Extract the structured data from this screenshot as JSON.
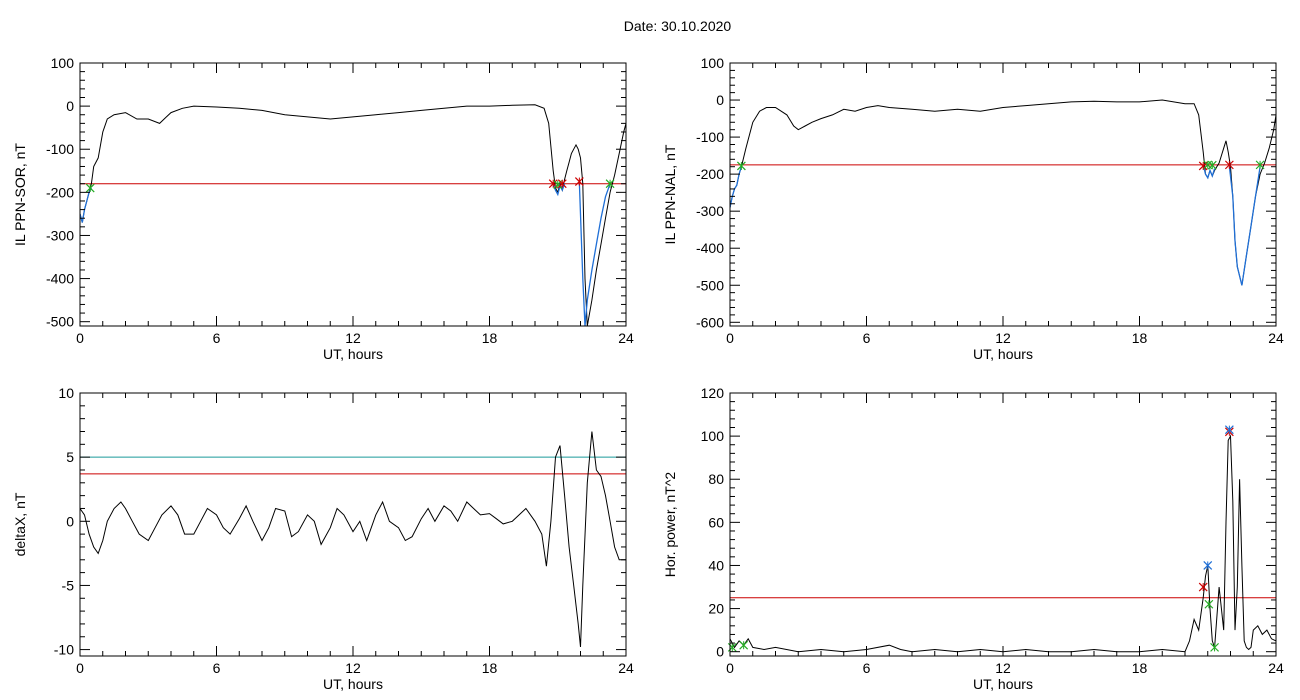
{
  "page": {
    "title": "Date:  30.10.2020"
  },
  "chart_data": [
    {
      "type": "line",
      "id": "panel-sor",
      "ylabel": "IL PPN-SOR, nT",
      "xlabel": "UT, hours",
      "xlim": [
        0,
        24
      ],
      "ylim": [
        -510,
        100
      ],
      "xticks": [
        0,
        6,
        12,
        18,
        24
      ],
      "yticks": [
        -500,
        -400,
        -300,
        -200,
        -100,
        0,
        100
      ],
      "series": [
        {
          "color": "#000000",
          "x": [
            0.0,
            0.1,
            0.2,
            0.3,
            0.4,
            0.5,
            0.6,
            0.8,
            1.0,
            1.2,
            1.5,
            2.0,
            2.5,
            3.0,
            3.5,
            3.8,
            4.0,
            4.5,
            5.0,
            6.0,
            7.0,
            8.0,
            9.0,
            10.0,
            11.0,
            12.0,
            13.0,
            14.0,
            15.0,
            16.0,
            17.0,
            18.0,
            19.0,
            20.0,
            20.4,
            20.6,
            20.8,
            20.9,
            21.0,
            21.1,
            21.2,
            21.3,
            21.4,
            21.5,
            21.6,
            21.7,
            21.8,
            21.9,
            22.0,
            22.1,
            22.2,
            22.3,
            22.5,
            22.7,
            22.9,
            23.1,
            23.3,
            23.5,
            23.7,
            23.9,
            24.0
          ],
          "y": [
            -250,
            -270,
            -240,
            -220,
            -200,
            -180,
            -140,
            -120,
            -60,
            -30,
            -20,
            -15,
            -30,
            -30,
            -40,
            -25,
            -15,
            -5,
            0,
            -2,
            -5,
            -10,
            -20,
            -25,
            -30,
            -25,
            -20,
            -15,
            -10,
            -5,
            0,
            0,
            2,
            3,
            -5,
            -40,
            -150,
            -190,
            -200,
            -180,
            -195,
            -170,
            -150,
            -130,
            -110,
            -100,
            -90,
            -100,
            -120,
            -180,
            -400,
            -510,
            -450,
            -380,
            -320,
            -260,
            -200,
            -160,
            -110,
            -60,
            -40
          ]
        }
      ],
      "segments": [
        {
          "color": "#1f6fd6",
          "x": [
            0.0,
            0.1,
            0.2,
            0.3,
            0.4,
            0.5
          ],
          "y": [
            -250,
            -270,
            -240,
            -220,
            -200,
            -190
          ]
        },
        {
          "color": "#1f6fd6",
          "x": [
            20.8,
            20.9,
            21.0,
            21.1,
            21.2,
            21.3
          ],
          "y": [
            -180,
            -195,
            -205,
            -185,
            -195,
            -180
          ]
        },
        {
          "color": "#1f6fd6",
          "x": [
            21.95,
            22.1,
            22.2,
            22.3,
            22.5,
            22.7,
            22.9,
            23.1,
            23.3
          ],
          "y": [
            -180,
            -400,
            -510,
            -450,
            -380,
            -320,
            -260,
            -210,
            -180
          ]
        }
      ],
      "threshold_lines": [
        {
          "y": -180,
          "color": "#cc0000"
        }
      ],
      "markers": [
        {
          "x": 0.45,
          "y": -190,
          "color": "#22aa22"
        },
        {
          "x": 20.8,
          "y": -180,
          "color": "#cc0000"
        },
        {
          "x": 21.0,
          "y": -182,
          "color": "#22aa22"
        },
        {
          "x": 21.2,
          "y": -180,
          "color": "#cc0000"
        },
        {
          "x": 21.95,
          "y": -175,
          "color": "#cc0000"
        },
        {
          "x": 23.3,
          "y": -180,
          "color": "#22aa22"
        }
      ]
    },
    {
      "type": "line",
      "id": "panel-nal",
      "ylabel": "IL PPN-NAL, nT",
      "xlabel": "UT, hours",
      "xlim": [
        0,
        24
      ],
      "ylim": [
        -610,
        100
      ],
      "xticks": [
        0,
        6,
        12,
        18,
        24
      ],
      "yticks": [
        -600,
        -500,
        -400,
        -300,
        -200,
        -100,
        0,
        100
      ],
      "series": [
        {
          "color": "#000000",
          "x": [
            0.0,
            0.1,
            0.2,
            0.3,
            0.4,
            0.5,
            0.7,
            1.0,
            1.3,
            1.6,
            2.0,
            2.5,
            2.8,
            3.0,
            3.3,
            3.6,
            4.0,
            4.5,
            5.0,
            5.5,
            6.0,
            6.5,
            7.0,
            8.0,
            9.0,
            10.0,
            11.0,
            12.0,
            13.0,
            14.0,
            15.0,
            16.0,
            17.0,
            18.0,
            19.0,
            20.0,
            20.4,
            20.6,
            20.8,
            20.9,
            21.0,
            21.1,
            21.2,
            21.3,
            21.4,
            21.5,
            21.6,
            21.7,
            21.8,
            21.9,
            22.0,
            22.1,
            22.2,
            22.3,
            22.5,
            22.7,
            22.9,
            23.1,
            23.3,
            23.5,
            23.7,
            23.9,
            24.0
          ],
          "y": [
            -290,
            -260,
            -240,
            -230,
            -200,
            -180,
            -130,
            -60,
            -30,
            -20,
            -20,
            -40,
            -70,
            -80,
            -70,
            -60,
            -50,
            -40,
            -25,
            -30,
            -20,
            -15,
            -20,
            -25,
            -30,
            -25,
            -30,
            -20,
            -15,
            -10,
            -5,
            -3,
            -5,
            -5,
            0,
            -10,
            -10,
            -40,
            -140,
            -200,
            -210,
            -190,
            -205,
            -190,
            -180,
            -170,
            -150,
            -130,
            -110,
            -140,
            -180,
            -260,
            -380,
            -450,
            -500,
            -420,
            -340,
            -260,
            -200,
            -170,
            -130,
            -80,
            -40
          ]
        }
      ],
      "segments": [
        {
          "color": "#1f6fd6",
          "x": [
            0.0,
            0.1,
            0.2,
            0.3,
            0.4,
            0.5
          ],
          "y": [
            -290,
            -260,
            -240,
            -230,
            -200,
            -180
          ]
        },
        {
          "color": "#1f6fd6",
          "x": [
            20.8,
            20.9,
            21.0,
            21.1,
            21.2,
            21.3
          ],
          "y": [
            -175,
            -200,
            -210,
            -190,
            -205,
            -185
          ]
        },
        {
          "color": "#1f6fd6",
          "x": [
            21.95,
            22.1,
            22.2,
            22.3,
            22.5,
            22.7,
            22.9,
            23.1,
            23.3
          ],
          "y": [
            -180,
            -260,
            -380,
            -450,
            -500,
            -420,
            -340,
            -260,
            -180
          ]
        }
      ],
      "threshold_lines": [
        {
          "y": -175,
          "color": "#cc0000"
        }
      ],
      "markers": [
        {
          "x": 0.5,
          "y": -178,
          "color": "#22aa22"
        },
        {
          "x": 20.8,
          "y": -178,
          "color": "#cc0000"
        },
        {
          "x": 21.0,
          "y": -175,
          "color": "#22aa22"
        },
        {
          "x": 21.2,
          "y": -176,
          "color": "#22aa22"
        },
        {
          "x": 21.95,
          "y": -175,
          "color": "#cc0000"
        },
        {
          "x": 23.3,
          "y": -175,
          "color": "#22aa22"
        }
      ]
    },
    {
      "type": "line",
      "id": "panel-deltax",
      "ylabel": "deltaX, nT",
      "xlabel": "UT, hours",
      "xlim": [
        0,
        24
      ],
      "ylim": [
        -10.5,
        10
      ],
      "xticks": [
        0,
        6,
        12,
        18,
        24
      ],
      "yticks": [
        -10,
        -5,
        0,
        5,
        10
      ],
      "series": [
        {
          "color": "#000000",
          "x": [
            0.0,
            0.2,
            0.4,
            0.6,
            0.8,
            1.0,
            1.2,
            1.5,
            1.8,
            2.0,
            2.3,
            2.6,
            3.0,
            3.3,
            3.6,
            4.0,
            4.3,
            4.6,
            5.0,
            5.3,
            5.6,
            6.0,
            6.3,
            6.6,
            7.0,
            7.3,
            7.6,
            8.0,
            8.3,
            8.6,
            9.0,
            9.3,
            9.6,
            10.0,
            10.3,
            10.6,
            11.0,
            11.3,
            11.6,
            12.0,
            12.3,
            12.6,
            13.0,
            13.3,
            13.6,
            14.0,
            14.3,
            14.6,
            15.0,
            15.3,
            15.6,
            16.0,
            16.3,
            16.6,
            17.0,
            17.3,
            17.6,
            18.0,
            18.3,
            18.6,
            19.0,
            19.3,
            19.6,
            20.0,
            20.3,
            20.5,
            20.7,
            20.9,
            21.1,
            21.3,
            21.5,
            21.7,
            21.9,
            22.0,
            22.1,
            22.3,
            22.5,
            22.7,
            22.9,
            23.1,
            23.3,
            23.5,
            23.7,
            24.0
          ],
          "y": [
            1.0,
            0.5,
            -1.0,
            -2.0,
            -2.5,
            -1.5,
            0.0,
            1.0,
            1.5,
            1.0,
            0.0,
            -1.0,
            -1.5,
            -0.5,
            0.5,
            1.2,
            0.5,
            -1.0,
            -1.0,
            0.0,
            1.0,
            0.5,
            -0.5,
            -1.0,
            0.2,
            1.2,
            0.0,
            -1.5,
            -0.5,
            1.0,
            0.8,
            -1.2,
            -0.8,
            0.5,
            0.0,
            -1.8,
            -0.5,
            1.0,
            0.5,
            -0.8,
            0.0,
            -1.5,
            0.5,
            1.5,
            0.0,
            -0.5,
            -1.5,
            -1.2,
            0.2,
            1.0,
            0.0,
            1.2,
            0.8,
            0.0,
            1.5,
            1.0,
            0.5,
            0.6,
            0.2,
            -0.2,
            0.0,
            0.5,
            1.0,
            0.0,
            -1.0,
            -3.5,
            0.0,
            5.0,
            5.9,
            2.0,
            -2.0,
            -5.0,
            -8.0,
            -9.8,
            -5.0,
            3.0,
            7.0,
            4.0,
            3.5,
            2.0,
            0.0,
            -2.0,
            -3.0,
            -3.0
          ]
        }
      ],
      "threshold_lines": [
        {
          "y": 5.0,
          "color": "#1a9a9a"
        },
        {
          "y": 3.7,
          "color": "#cc0000"
        }
      ],
      "markers": []
    },
    {
      "type": "line",
      "id": "panel-power",
      "ylabel": "Hor. power, nT^2",
      "xlabel": "UT, hours",
      "xlim": [
        0,
        24
      ],
      "ylim": [
        -2,
        120
      ],
      "xticks": [
        0,
        6,
        12,
        18,
        24
      ],
      "yticks": [
        0,
        20,
        40,
        60,
        80,
        100,
        120
      ],
      "series": [
        {
          "color": "#000000",
          "x": [
            0.0,
            0.2,
            0.4,
            0.6,
            0.8,
            1.0,
            1.5,
            2.0,
            3.0,
            4.0,
            5.0,
            6.0,
            7.0,
            7.5,
            8.0,
            9.0,
            10.0,
            11.0,
            12.0,
            13.0,
            14.0,
            15.0,
            16.0,
            17.0,
            18.0,
            19.0,
            20.0,
            20.2,
            20.4,
            20.6,
            20.8,
            20.9,
            21.0,
            21.1,
            21.2,
            21.3,
            21.5,
            21.7,
            21.8,
            21.9,
            22.0,
            22.1,
            22.2,
            22.3,
            22.4,
            22.5,
            22.6,
            22.7,
            22.8,
            22.9,
            23.0,
            23.2,
            23.4,
            23.6,
            23.8,
            24.0
          ],
          "y": [
            6,
            2,
            5,
            3,
            6,
            2,
            1,
            2,
            0,
            1,
            0,
            1,
            3,
            1,
            0,
            1,
            0,
            1,
            0,
            1,
            0,
            0,
            1,
            0,
            0,
            1,
            0,
            5,
            15,
            10,
            25,
            35,
            40,
            20,
            5,
            2,
            30,
            10,
            60,
            98,
            100,
            70,
            10,
            30,
            80,
            40,
            5,
            2,
            1,
            2,
            10,
            12,
            8,
            10,
            6,
            5
          ]
        }
      ],
      "threshold_lines": [
        {
          "y": 25,
          "color": "#cc0000"
        }
      ],
      "markers": [
        {
          "x": 0.1,
          "y": 2,
          "color": "#22aa22"
        },
        {
          "x": 0.6,
          "y": 3,
          "color": "#22aa22"
        },
        {
          "x": 20.8,
          "y": 30,
          "color": "#cc0000"
        },
        {
          "x": 21.0,
          "y": 40,
          "color": "#1f6fd6"
        },
        {
          "x": 21.05,
          "y": 22,
          "color": "#22aa22"
        },
        {
          "x": 21.3,
          "y": 2,
          "color": "#22aa22"
        },
        {
          "x": 21.95,
          "y": 102,
          "color": "#cc0000"
        },
        {
          "x": 21.95,
          "y": 103,
          "color": "#1f6fd6"
        }
      ]
    }
  ]
}
